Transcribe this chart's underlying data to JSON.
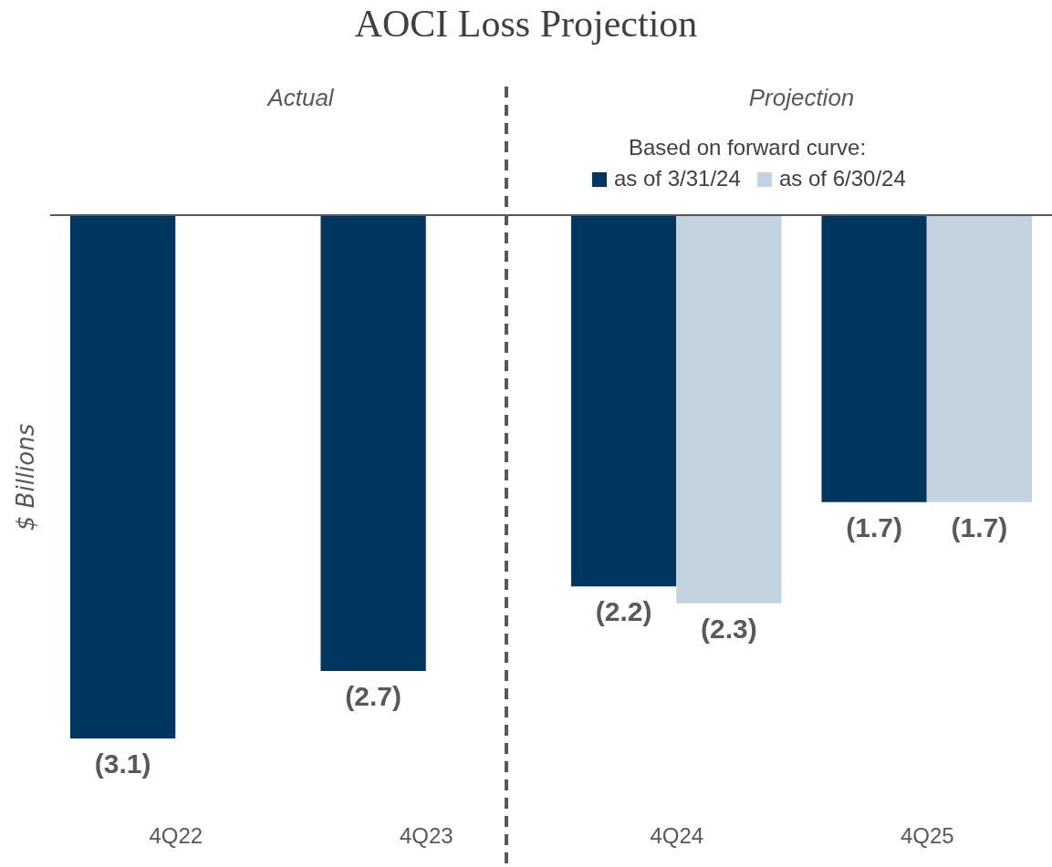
{
  "chart_data": {
    "type": "bar",
    "title": "AOCI Loss Projection",
    "ylabel": "$ Billions",
    "legend_title": "Based on forward curve:",
    "categories": [
      "4Q22",
      "4Q23",
      "4Q24",
      "4Q25"
    ],
    "series": [
      {
        "name": "as of 3/31/24",
        "color": "#003660",
        "values": [
          -3.1,
          -2.7,
          -2.2,
          -1.7
        ],
        "value_labels": [
          "(3.1)",
          "(2.7)",
          "(2.2)",
          "(1.7)"
        ]
      },
      {
        "name": "as of 6/30/24",
        "color": "#c3d4e0",
        "values": [
          null,
          null,
          -2.3,
          -1.7
        ],
        "value_labels": [
          null,
          null,
          "(2.3)",
          "(1.7)"
        ]
      }
    ],
    "tick_labels": "x",
    "legend": "top right",
    "grid": false,
    "annotations": [
      "Actual",
      "Projection"
    ]
  }
}
